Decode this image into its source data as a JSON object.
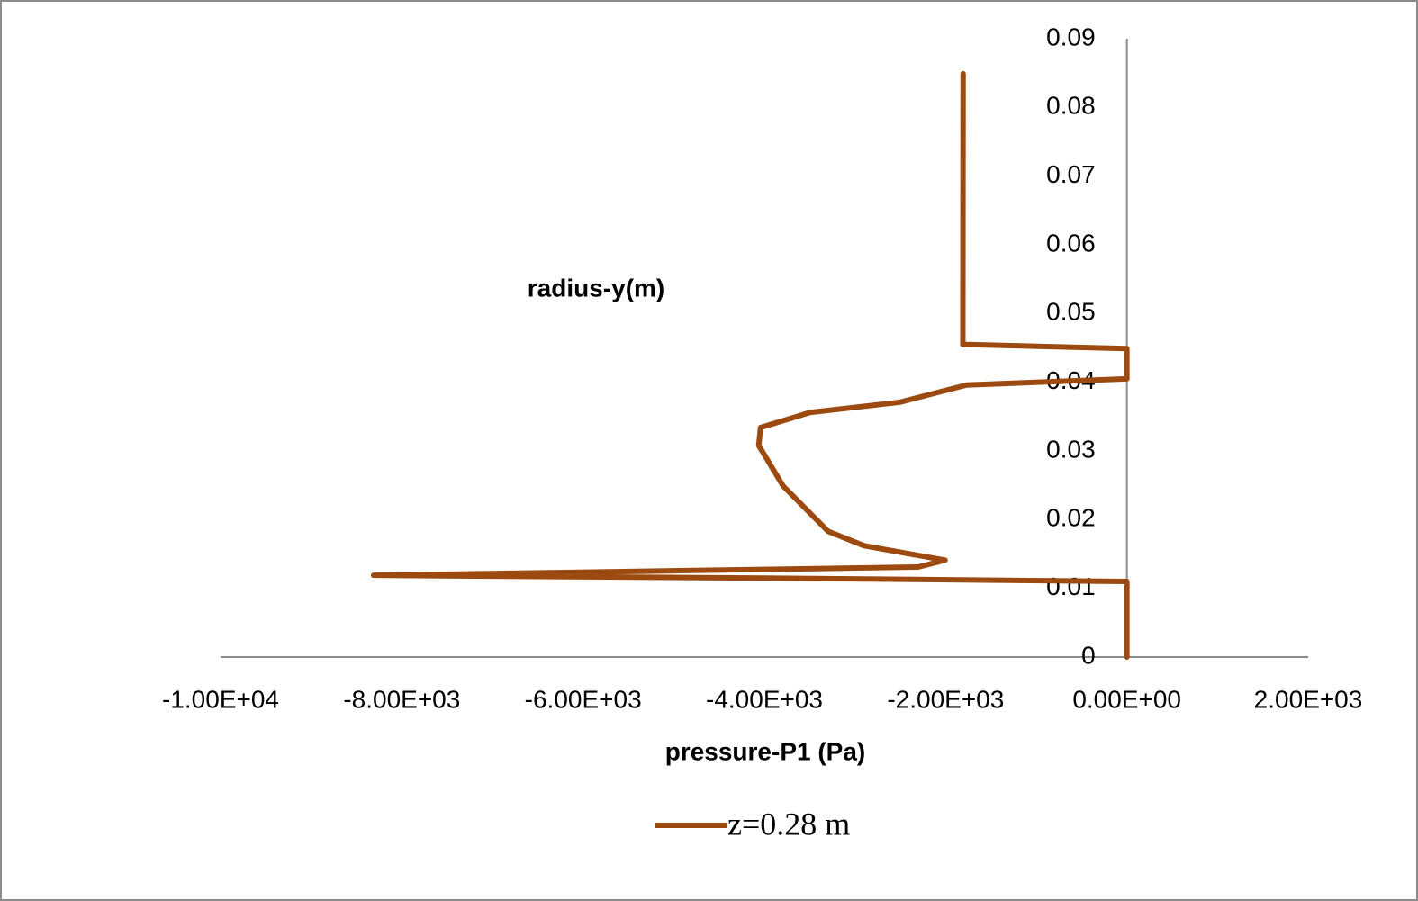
{
  "chart_data": {
    "type": "line",
    "x_label": "pressure-P1 (Pa)",
    "y_label": "radius-y(m)",
    "x": [
      -1807,
      -1810,
      0,
      0,
      -1770,
      -2503,
      -3496,
      -4042,
      -4062,
      -3793,
      -3297,
      -2900,
      -2006,
      -2304,
      -8312,
      -3992,
      0,
      0
    ],
    "series": [
      {
        "name": "z=0.28 m",
        "color": "#9c4a0f",
        "values": [
          0.0849,
          0.0455,
          0.0449,
          0.0405,
          0.0396,
          0.0371,
          0.0356,
          0.0334,
          0.0308,
          0.0249,
          0.0183,
          0.0162,
          0.0141,
          0.0131,
          0.0119,
          0.0115,
          0.011,
          0
        ]
      }
    ],
    "xlim": [
      -10000,
      2000
    ],
    "xticks": [
      {
        "value": -10000,
        "label": "-1.00E+04"
      },
      {
        "value": -8000,
        "label": "-8.00E+03"
      },
      {
        "value": -6000,
        "label": "-6.00E+03"
      },
      {
        "value": -4000,
        "label": "-4.00E+03"
      },
      {
        "value": -2000,
        "label": "-2.00E+03"
      },
      {
        "value": 0,
        "label": "0.00E+00"
      },
      {
        "value": 2000,
        "label": "2.00E+03"
      }
    ],
    "ylim": [
      0,
      0.09
    ],
    "yticks": [
      0,
      0.01,
      0.02,
      0.03,
      0.04,
      0.05,
      0.06,
      0.07,
      0.08,
      0.09
    ],
    "grid": false,
    "legend": "bottom"
  }
}
